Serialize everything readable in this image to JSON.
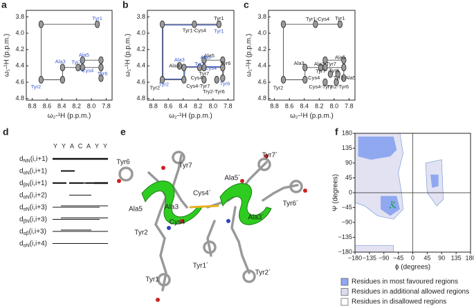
{
  "spectra": [
    {
      "letter": "a",
      "x_label": "ω₂-¹H (p.p.m.)",
      "y_label": "ω₁-¹H (p.p.m.)",
      "xlim": [
        8.88,
        7.72
      ],
      "ylim": [
        3.72,
        4.82
      ],
      "xticks": [
        8.8,
        8.6,
        8.4,
        8.2,
        {
          "value": 8,
          "label": "8.0"
        },
        7.8
      ],
      "yticks": [
        3.8,
        {
          "value": 4,
          "label": "4.0"
        },
        4.2,
        4.4,
        4.6,
        4.8
      ],
      "peaks": [
        [
          7.92,
          3.89
        ],
        [
          8.68,
          3.89
        ],
        [
          8.68,
          4.57
        ],
        [
          8.39,
          4.42
        ],
        [
          8.39,
          4.57
        ],
        [
          8.18,
          4.42
        ],
        [
          8.12,
          4.42
        ],
        [
          8.12,
          4.33
        ],
        [
          7.87,
          4.33
        ],
        [
          7.87,
          4.42
        ],
        [
          7.87,
          4.55
        ]
      ],
      "labels": [
        {
          "text": "Tyr1",
          "color": "#3a5ad0"
        },
        {
          "text": "Ala3",
          "color": "#3a5ad0"
        },
        {
          "text": "Ala5",
          "color": "#3a5ad0"
        },
        {
          "text": "Tyr7",
          "color": "#3a5ad0"
        },
        {
          "text": "Cys4",
          "color": "#3a5ad0"
        },
        {
          "text": "Tyr6",
          "color": "#3a5ad0"
        },
        {
          "text": "Tyr2",
          "color": "#3a5ad0"
        }
      ]
    },
    {
      "letter": "b",
      "x_label": "ω₂-¹H (p.p.m.)",
      "y_label": "ω₁-¹H (p.p.m.)",
      "xlim": [
        8.88,
        7.72
      ],
      "ylim": [
        3.72,
        4.82
      ],
      "xticks": [
        8.8,
        8.6,
        8.4,
        8.2,
        {
          "value": 8,
          "label": "8.0"
        },
        7.8
      ],
      "yticks": [
        3.8,
        {
          "value": 4,
          "label": "4.0"
        },
        4.2,
        4.4,
        4.6,
        4.8
      ],
      "peaks": [
        [
          7.92,
          3.89
        ],
        [
          8.68,
          3.89
        ],
        [
          8.68,
          4.57
        ],
        [
          8.39,
          4.42
        ],
        [
          8.39,
          4.57
        ],
        [
          8.18,
          4.42
        ],
        [
          8.12,
          4.42
        ],
        [
          8.12,
          4.33
        ],
        [
          7.87,
          4.33
        ],
        [
          7.87,
          4.42
        ],
        [
          7.87,
          4.55
        ],
        [
          8.25,
          3.89
        ],
        [
          8.12,
          4.57
        ],
        [
          7.95,
          4.57
        ],
        [
          8.45,
          4.4
        ]
      ],
      "labels": [
        {
          "text": "Tyr1",
          "color": "#222"
        },
        {
          "text": "Tyr1-Cys4",
          "color": "#222"
        },
        {
          "text": "Ala3",
          "color": "#222"
        },
        {
          "text": "Tyr7",
          "color": "#222"
        },
        {
          "text": "Ala5",
          "color": "#222"
        },
        {
          "text": "Tyr6",
          "color": "#222"
        },
        {
          "text": "Tyr2",
          "color": "#222"
        },
        {
          "text": "Cys4",
          "color": "#222"
        },
        {
          "text": "Cys4-Tyr7",
          "color": "#222"
        },
        {
          "text": "Try2-Tyr6",
          "color": "#222"
        },
        {
          "text": "Tyr1",
          "color": "#3a5ad0"
        },
        {
          "text": "Ala3",
          "color": "#3a5ad0"
        },
        {
          "text": "Tyr7",
          "color": "#3a5ad0"
        },
        {
          "text": "Cys4",
          "color": "#3a5ad0"
        },
        {
          "text": "Ala5",
          "color": "#3a5ad0"
        },
        {
          "text": "Tyr6",
          "color": "#3a5ad0"
        },
        {
          "text": "Tyr2",
          "color": "#3a5ad0"
        }
      ]
    },
    {
      "letter": "c",
      "x_label": "ω₂-¹H (p.p.m.)",
      "y_label": "ω₁-¹H (p.p.m.)",
      "xlim": [
        8.88,
        7.72
      ],
      "ylim": [
        3.72,
        4.82
      ],
      "xticks": [
        8.8,
        8.6,
        8.4,
        8.2,
        {
          "value": 8,
          "label": "8.0"
        },
        7.8
      ],
      "yticks": [
        3.8,
        {
          "value": 4,
          "label": "4.0"
        },
        4.2,
        4.4,
        4.6,
        4.8
      ],
      "peaks": [
        [
          7.92,
          3.89
        ],
        [
          8.68,
          3.89
        ],
        [
          8.68,
          4.57
        ],
        [
          8.39,
          4.42
        ],
        [
          8.39,
          4.57
        ],
        [
          8.18,
          4.42
        ],
        [
          8.12,
          4.42
        ],
        [
          8.12,
          4.33
        ],
        [
          7.87,
          4.33
        ],
        [
          7.87,
          4.42
        ],
        [
          7.87,
          4.55
        ],
        [
          8.25,
          3.89
        ],
        [
          8.05,
          4.5
        ],
        [
          7.95,
          4.5
        ],
        [
          8.12,
          4.6
        ],
        [
          7.97,
          4.6
        ]
      ],
      "labels": [
        {
          "text": "Tyr1-Cys4",
          "color": "#222"
        },
        {
          "text": "Tyr1",
          "color": "#222"
        },
        {
          "text": "Ala3",
          "color": "#222"
        },
        {
          "text": "Ala3-Tyr7",
          "color": "#222"
        },
        {
          "text": "Ala5",
          "color": "#222"
        },
        {
          "text": "Tyr7",
          "color": "#222"
        },
        {
          "text": "Tyr6",
          "color": "#222"
        },
        {
          "text": "Tyr2-Ala5",
          "color": "#222"
        },
        {
          "text": "Cys4",
          "color": "#222"
        },
        {
          "text": "Tyr2",
          "color": "#222"
        },
        {
          "text": "Cys4-Tyr7",
          "color": "#222"
        },
        {
          "text": "Tyr2-Tyr6",
          "color": "#222"
        }
      ]
    }
  ],
  "noe": {
    "letter": "d",
    "residues": [
      "Y",
      "Y",
      "A",
      "C",
      "A",
      "Y",
      "Y"
    ],
    "rows": [
      {
        "sym": "d",
        "sub": "NN",
        "args": "(i,i+1)"
      },
      {
        "sym": "d",
        "sub": "αN",
        "args": "(i,i+1)"
      },
      {
        "sym": "d",
        "sub": "βN",
        "args": "(i,i+1)"
      },
      {
        "sym": "d",
        "sub": "αN",
        "args": "(i,i+2)"
      },
      {
        "sym": "d",
        "sub": "αN",
        "args": "(i,i+3)"
      },
      {
        "sym": "d",
        "sub": "βN",
        "args": "(i,i+3)"
      },
      {
        "sym": "d",
        "sub": "αβ",
        "args": "(i,i+3)"
      },
      {
        "sym": "d",
        "sub": "αN",
        "args": "(i,i+4)"
      }
    ]
  },
  "structure": {
    "letter": "e",
    "labels": [
      "Tyr6",
      "Tyr7",
      "Ala5",
      "Ala3",
      "Cys4",
      "Tyr2",
      "Tyr1",
      "Cys4´",
      "Ala5´",
      "Tyr7´",
      "Tyr6´",
      "Ala3´",
      "Tyr1´",
      "Tyr2´"
    ]
  },
  "ramachandran": {
    "letter": "f",
    "x_label": "ϕ (degrees)",
    "y_label": "Ψ (degrees)",
    "xlim": [
      -180,
      180
    ],
    "ylim": [
      -180,
      180
    ],
    "xticks": [
      {
        "value": -180,
        "label": "−180"
      },
      {
        "value": -135,
        "label": "−135"
      },
      {
        "value": -90,
        "label": "−90"
      },
      {
        "value": -45,
        "label": "−45"
      },
      0,
      45,
      90,
      135,
      180
    ],
    "yticks": [
      {
        "value": -180,
        "label": "−180"
      },
      {
        "value": -135,
        "label": "−135"
      },
      {
        "value": -90,
        "label": "−90"
      },
      {
        "value": -45,
        "label": "−45"
      },
      0,
      45,
      90,
      135,
      180
    ],
    "legend": [
      {
        "text": "Residues in most favoured regions",
        "color": "#8fa8f0"
      },
      {
        "text": "Residues in additional allowed regions",
        "color": "#dcdcf0"
      },
      {
        "text": "Residues in disallowed regions",
        "color": "#ffffff"
      }
    ]
  }
}
